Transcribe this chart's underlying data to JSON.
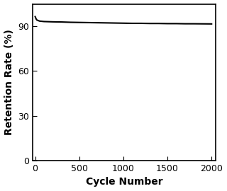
{
  "x_data": [
    0,
    5,
    10,
    20,
    50,
    100,
    200,
    300,
    400,
    500,
    600,
    700,
    800,
    900,
    1000,
    1100,
    1200,
    1300,
    1400,
    1500,
    1600,
    1700,
    1800,
    1900,
    2000
  ],
  "y_data": [
    96.5,
    95.8,
    95.0,
    94.2,
    93.5,
    93.2,
    93.0,
    92.9,
    92.7,
    92.6,
    92.5,
    92.4,
    92.3,
    92.2,
    92.1,
    92.0,
    92.0,
    91.9,
    91.9,
    91.8,
    91.8,
    91.7,
    91.7,
    91.65,
    91.6
  ],
  "xlabel": "Cycle Number",
  "ylabel": "Retention Rate (%)",
  "xlim": [
    -30,
    2050
  ],
  "ylim": [
    0,
    105
  ],
  "yticks": [
    0,
    30,
    60,
    90
  ],
  "xticks": [
    0,
    500,
    1000,
    1500,
    2000
  ],
  "line_color": "#000000",
  "line_width": 1.5,
  "background_color": "#ffffff",
  "tick_fontsize": 9,
  "label_fontsize": 10,
  "fig_width": 3.2,
  "fig_height": 2.7,
  "dpi": 100
}
